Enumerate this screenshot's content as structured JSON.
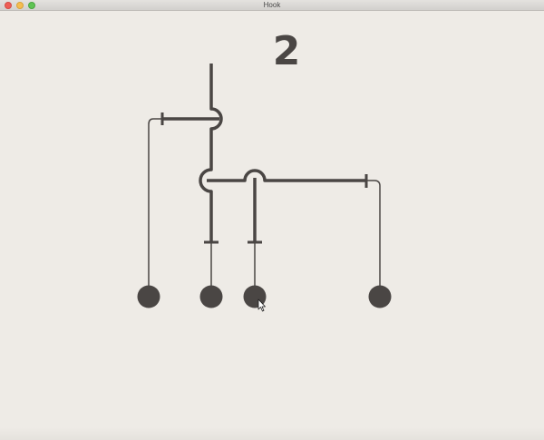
{
  "window": {
    "title": "Hook"
  },
  "game": {
    "level": "2",
    "colors": {
      "background": "#eeebe6",
      "line": "#4a4644"
    },
    "buttons": [
      {
        "name": "hook-button-1"
      },
      {
        "name": "hook-button-2"
      },
      {
        "name": "hook-button-3"
      },
      {
        "name": "hook-button-4"
      }
    ]
  }
}
